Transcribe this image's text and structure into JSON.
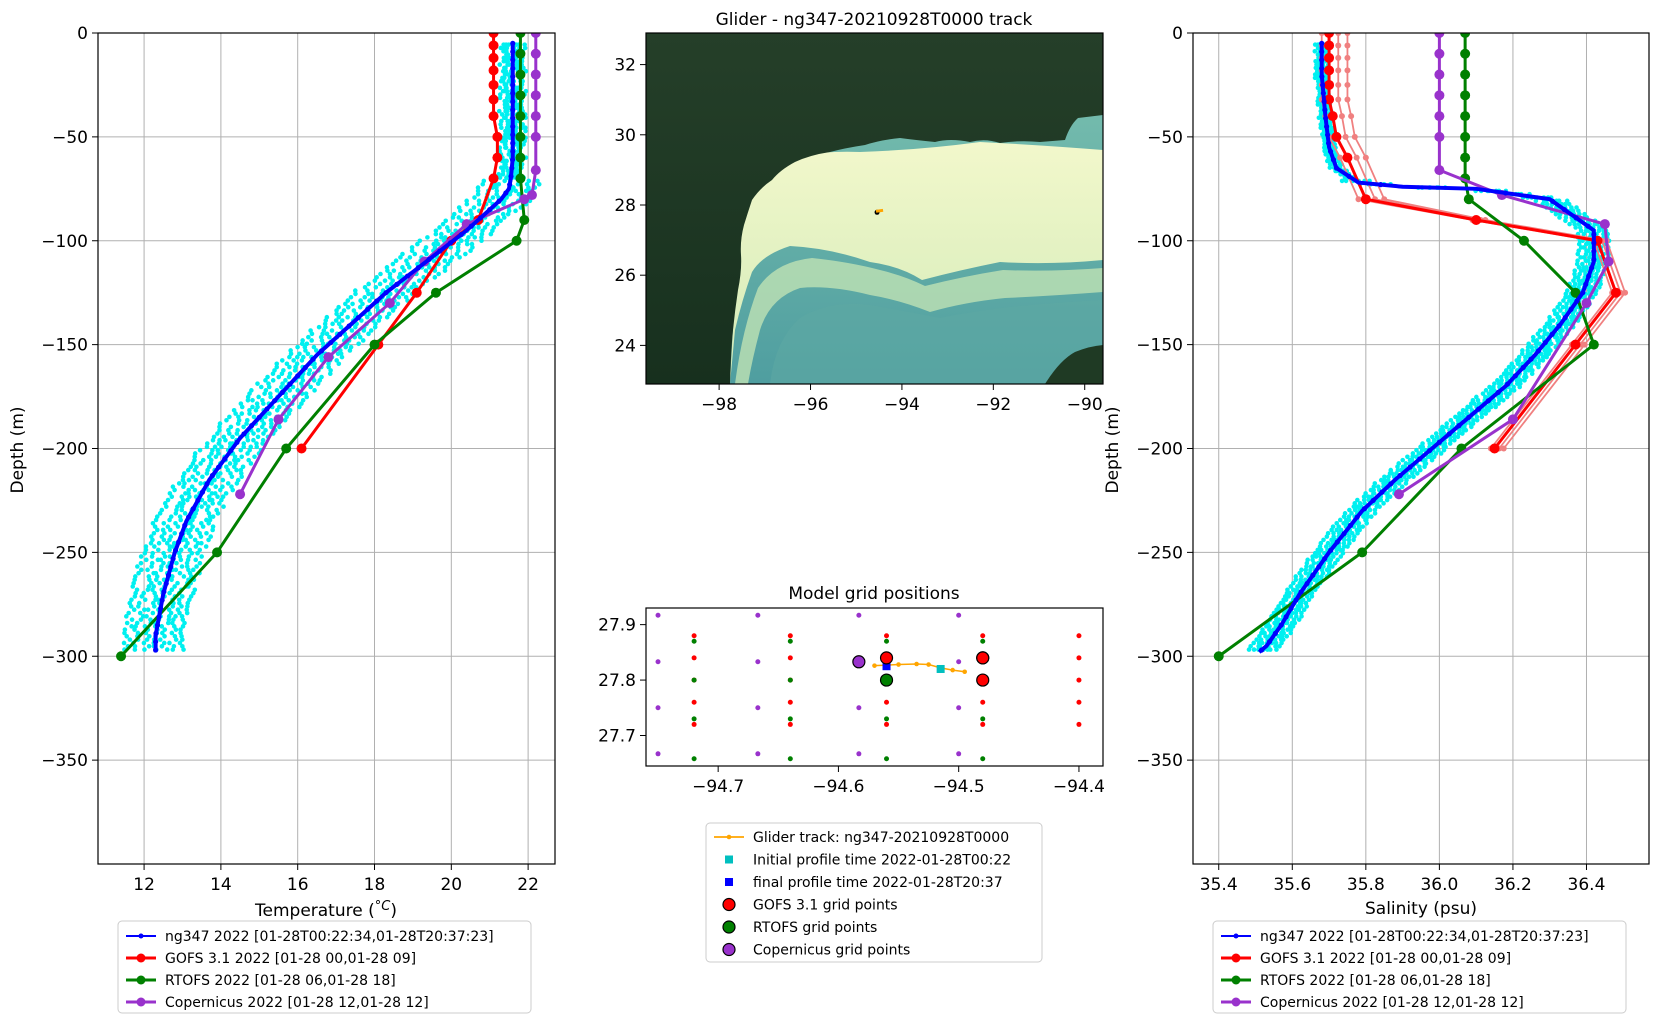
{
  "chart_data": [
    {
      "type": "line",
      "panel": "temperature-profile",
      "title": "",
      "xlabel_main": "Temperature (",
      "xlabel_unit": "°C",
      "xlabel_end": ")",
      "ylabel": "Depth (m)",
      "xlim": [
        10.8,
        22.7
      ],
      "ylim": [
        -400,
        0
      ],
      "xticks": [
        12,
        14,
        16,
        18,
        20,
        22
      ],
      "yticks": [
        0,
        -50,
        -100,
        -150,
        -200,
        -250,
        -300,
        -350
      ],
      "grid": true,
      "legend_position": "below",
      "colors": {
        "glider": "#0000ff",
        "glider_scatter": "#00ffff",
        "gofs": "#ff0000",
        "rtofs": "#008000",
        "copernicus": "#9932cc"
      },
      "series": [
        {
          "name": "ng347 2022 [01-28T00:22:34,01-28T20:37:23]",
          "color": "#0000ff",
          "x": [
            21.6,
            21.6,
            21.6,
            21.6,
            21.55,
            21.5,
            21.3,
            21.0,
            20.4,
            19.7,
            19.0,
            18.3,
            17.7,
            17.1,
            16.5,
            16.0,
            15.5,
            15.0,
            14.5,
            14.1,
            13.7,
            13.4,
            13.1,
            12.8,
            12.5,
            12.3,
            12.3
          ],
          "y": [
            -5,
            -20,
            -40,
            -60,
            -70,
            -75,
            -80,
            -85,
            -95,
            -105,
            -115,
            -125,
            -135,
            -145,
            -155,
            -165,
            -175,
            -185,
            -195,
            -205,
            -215,
            -225,
            -235,
            -250,
            -270,
            -290,
            -298
          ]
        },
        {
          "name": "GOFS 3.1 2022 [01-28 00,01-28 09]",
          "color": "#ff0000",
          "x": [
            21.1,
            21.1,
            21.1,
            21.1,
            21.1,
            21.1,
            21.1,
            21.2,
            21.2,
            21.1,
            20.7,
            20.0,
            19.1,
            18.1,
            16.1
          ],
          "y": [
            0,
            -6,
            -12,
            -18,
            -25,
            -32,
            -40,
            -50,
            -60,
            -70,
            -90,
            -100,
            -125,
            -150,
            -200
          ]
        },
        {
          "name": "RTOFS 2022 [01-28 06,01-28 18]",
          "color": "#008000",
          "x": [
            21.8,
            21.8,
            21.8,
            21.8,
            21.8,
            21.8,
            21.8,
            21.8,
            21.9,
            21.7,
            19.6,
            18.0,
            15.7,
            13.9,
            11.4
          ],
          "y": [
            0,
            -10,
            -20,
            -30,
            -40,
            -50,
            -60,
            -70,
            -90,
            -100,
            -125,
            -150,
            -200,
            -250,
            -300
          ]
        },
        {
          "name": "Copernicus 2022 [01-28 12,01-28 12]",
          "color": "#9932cc",
          "x": [
            22.2,
            22.2,
            22.2,
            22.2,
            22.2,
            22.2,
            22.2,
            22.1,
            21.9,
            20.4,
            19.3,
            18.4,
            16.8,
            15.5,
            14.5
          ],
          "y": [
            0,
            -10,
            -20,
            -30,
            -40,
            -50,
            -66,
            -78,
            -80,
            -92,
            -110,
            -130,
            -156,
            -186,
            -222
          ]
        }
      ]
    },
    {
      "type": "map",
      "panel": "glider-track-map",
      "title": "Glider - ng347-20210928T0000 track",
      "xlim": [
        -99.6,
        -89.6
      ],
      "ylim": [
        22.9,
        32.9
      ],
      "xticks": [
        -98,
        -96,
        -94,
        -92,
        -90
      ],
      "yticks": [
        24,
        26,
        28,
        30,
        32
      ],
      "track_position": {
        "lon": -94.5,
        "lat": 27.82
      }
    },
    {
      "type": "scatter",
      "panel": "model-grid-positions",
      "title": "Model grid positions",
      "xlim": [
        -94.76,
        -94.38
      ],
      "ylim": [
        27.645,
        27.93
      ],
      "xticks": [
        -94.7,
        -94.6,
        -94.5,
        -94.4
      ],
      "yticks": [
        27.7,
        27.8,
        27.9
      ],
      "grid": false,
      "legend_position": "below",
      "gofs_grid_lons": [
        -94.72,
        -94.64,
        -94.56,
        -94.48,
        -94.4
      ],
      "gofs_grid_lats": [
        27.72,
        27.76,
        27.8,
        27.84,
        27.88
      ],
      "rtofs_grid_lons": [
        -94.72,
        -94.64,
        -94.56,
        -94.48
      ],
      "rtofs_grid_lats": [
        27.658,
        27.73,
        27.8,
        27.87
      ],
      "copernicus_grid_lons": [
        -94.75,
        -94.667,
        -94.583,
        -94.5
      ],
      "copernicus_grid_lats": [
        27.667,
        27.75,
        27.833,
        27.917
      ],
      "glider_track": {
        "x": [
          -94.57,
          -94.55,
          -94.535,
          -94.525,
          -94.515,
          -94.505,
          -94.495
        ],
        "y": [
          27.826,
          27.828,
          27.829,
          27.828,
          27.822,
          27.818,
          27.815
        ]
      },
      "initial_profile": {
        "x": -94.515,
        "y": 27.82
      },
      "final_profile": {
        "x": -94.56,
        "y": 27.825
      },
      "highlighted": {
        "gofs": [
          {
            "x": -94.56,
            "y": 27.84
          },
          {
            "x": -94.48,
            "y": 27.84
          },
          {
            "x": -94.48,
            "y": 27.8
          }
        ],
        "rtofs": [
          {
            "x": -94.56,
            "y": 27.8
          },
          {
            "x": -94.48,
            "y": 27.84
          }
        ],
        "copernicus": [
          {
            "x": -94.583,
            "y": 27.833
          }
        ]
      },
      "legend": [
        {
          "label": "Glider track: ng347-20210928T0000",
          "marker": "line",
          "color": "#ffa500"
        },
        {
          "label": "Initial profile time 2022-01-28T00:22",
          "marker": "square",
          "color": "#00bfbf"
        },
        {
          "label": "final profile time 2022-01-28T20:37",
          "marker": "square",
          "color": "#0000ff"
        },
        {
          "label": "GOFS 3.1 grid points",
          "marker": "circle",
          "color": "#ff0000"
        },
        {
          "label": "RTOFS grid points",
          "marker": "circle",
          "color": "#008000"
        },
        {
          "label": "Copernicus grid points",
          "marker": "circle",
          "color": "#9932cc"
        }
      ]
    },
    {
      "type": "line",
      "panel": "salinity-profile",
      "title": "",
      "xlabel": "Salinity (psu)",
      "ylabel": "Depth (m)",
      "xlim": [
        35.33,
        36.57
      ],
      "ylim": [
        -400,
        0
      ],
      "xticks": [
        35.4,
        35.6,
        35.8,
        36.0,
        36.2,
        36.4
      ],
      "yticks": [
        0,
        -50,
        -100,
        -150,
        -200,
        -250,
        -300,
        -350
      ],
      "grid": true,
      "legend_position": "below",
      "series": [
        {
          "name": "ng347 2022 [01-28T00:22:34,01-28T20:37:23]",
          "color": "#0000ff",
          "x": [
            35.68,
            35.68,
            35.69,
            35.7,
            35.72,
            35.78,
            35.9,
            36.1,
            36.3,
            36.42,
            36.42,
            36.39,
            36.33,
            36.26,
            36.18,
            36.08,
            35.98,
            35.88,
            35.79,
            35.7,
            35.62,
            35.57,
            35.53,
            35.51
          ],
          "y": [
            -5,
            -20,
            -40,
            -55,
            -65,
            -72,
            -74,
            -75,
            -80,
            -95,
            -110,
            -125,
            -140,
            -155,
            -170,
            -185,
            -200,
            -215,
            -230,
            -250,
            -270,
            -285,
            -295,
            -298
          ]
        },
        {
          "name": "GOFS 3.1 2022 [01-28 00,01-28 09]",
          "color": "#ff0000",
          "x": [
            35.7,
            35.7,
            35.7,
            35.7,
            35.7,
            35.7,
            35.71,
            35.72,
            35.75,
            35.8,
            36.1,
            36.43,
            36.48,
            36.37,
            36.15
          ],
          "y": [
            0,
            -6,
            -12,
            -18,
            -25,
            -32,
            -40,
            -50,
            -60,
            -80,
            -90,
            -100,
            -125,
            -150,
            -200
          ]
        },
        {
          "name": "RTOFS 2022 [01-28 06,01-28 18]",
          "color": "#008000",
          "x": [
            36.07,
            36.07,
            36.07,
            36.07,
            36.07,
            36.07,
            36.07,
            36.07,
            36.08,
            36.23,
            36.37,
            36.42,
            36.06,
            35.79,
            35.4
          ],
          "y": [
            0,
            -10,
            -20,
            -30,
            -40,
            -50,
            -60,
            -70,
            -80,
            -100,
            -125,
            -150,
            -200,
            -250,
            -300
          ]
        },
        {
          "name": "Copernicus 2022 [01-28 12,01-28 12]",
          "color": "#9932cc",
          "x": [
            36.0,
            36.0,
            36.0,
            36.0,
            36.0,
            36.0,
            36.0,
            36.17,
            36.45,
            36.46,
            36.4,
            36.2,
            35.89
          ],
          "y": [
            0,
            -10,
            -20,
            -30,
            -40,
            -50,
            -66,
            -78,
            -92,
            -110,
            -130,
            -186,
            -222
          ]
        }
      ]
    }
  ]
}
